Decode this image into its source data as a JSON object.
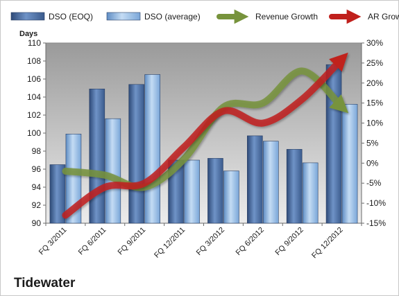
{
  "chart_data": {
    "type": "bar",
    "company": "Tidewater",
    "ylabel": "Days",
    "ylim": [
      90,
      110
    ],
    "y2lim": [
      -15,
      30
    ],
    "y_ticks": [
      90,
      92,
      94,
      96,
      98,
      100,
      102,
      104,
      106,
      108,
      110
    ],
    "y2_ticks": [
      "-15%",
      "-10%",
      "-5%",
      "0%",
      "5%",
      "10%",
      "15%",
      "20%",
      "25%",
      "30%"
    ],
    "categories": [
      "FQ 3/2011",
      "FQ 6/2011",
      "FQ 9/2011",
      "FQ 12/2011",
      "FQ 3/2012",
      "FQ 6/2012",
      "FQ 9/2012",
      "FQ 12/2012"
    ],
    "series": [
      {
        "name": "DSO (EOQ)",
        "type": "bar",
        "axis": "left",
        "color": "#4a6fa5",
        "values": [
          96.5,
          104.9,
          105.4,
          97.0,
          97.2,
          99.7,
          98.2,
          107.6
        ]
      },
      {
        "name": "DSO (average)",
        "type": "bar",
        "axis": "left",
        "color": "#8eb4e3",
        "values": [
          99.9,
          101.6,
          106.5,
          97.0,
          95.8,
          99.1,
          96.7,
          103.2
        ]
      },
      {
        "name": "Revenue Growth",
        "type": "line",
        "axis": "right",
        "color": "#77933c",
        "values": [
          -2.0,
          -3.0,
          -6.0,
          1.0,
          14.0,
          15.0,
          23.0,
          14.0
        ]
      },
      {
        "name": "AR Growth",
        "type": "line",
        "axis": "right",
        "color": "#c0201c",
        "values": [
          -13.0,
          -6.0,
          -5.0,
          4.0,
          13.0,
          10.0,
          16.0,
          26.0
        ]
      }
    ],
    "legend": "top",
    "grid": false
  }
}
